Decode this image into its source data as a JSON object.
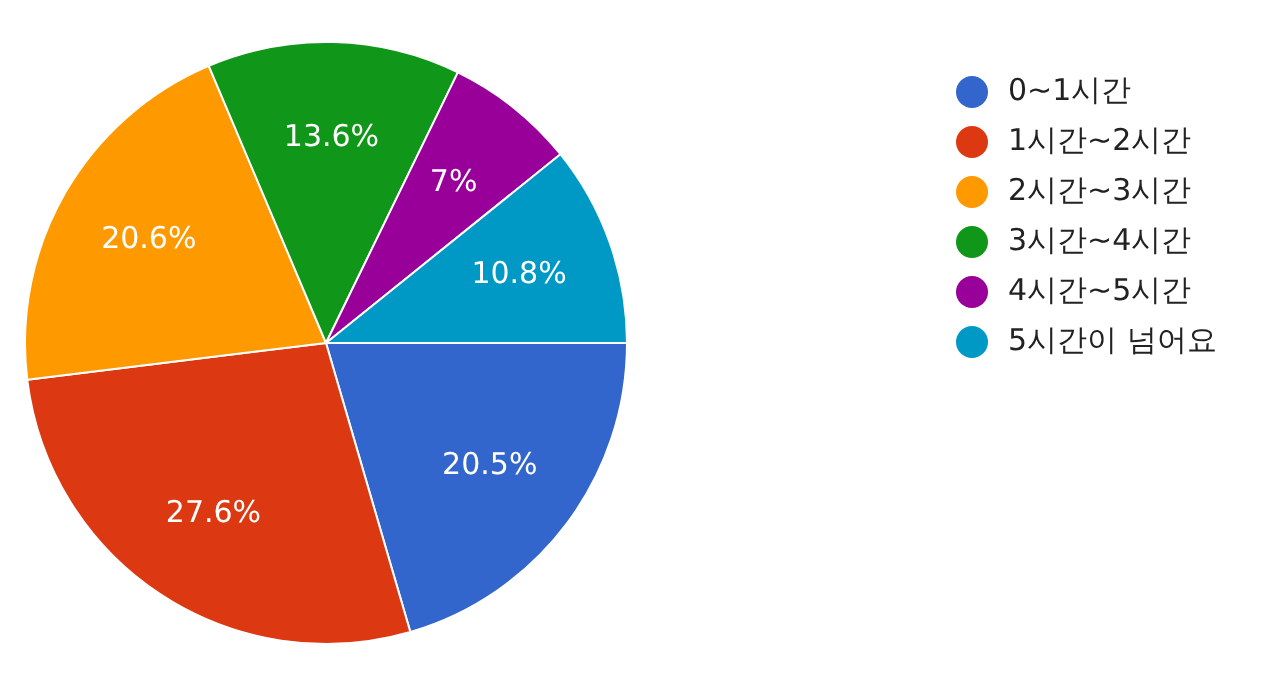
{
  "chart_data": {
    "type": "pie",
    "categories": [
      "0~1시간",
      "1시간~2시간",
      "2시간~3시간",
      "3시간~4시간",
      "4시간~5시간",
      "5시간이 넘어요"
    ],
    "values": [
      20.5,
      27.6,
      20.6,
      13.6,
      7,
      10.8
    ],
    "value_labels": [
      "20.5%",
      "27.6%",
      "20.6%",
      "13.6%",
      "7%",
      "10.8%"
    ],
    "colors": [
      "#3366cc",
      "#dc3912",
      "#ff9900",
      "#109618",
      "#990099",
      "#0099c6"
    ],
    "legend": "right"
  }
}
